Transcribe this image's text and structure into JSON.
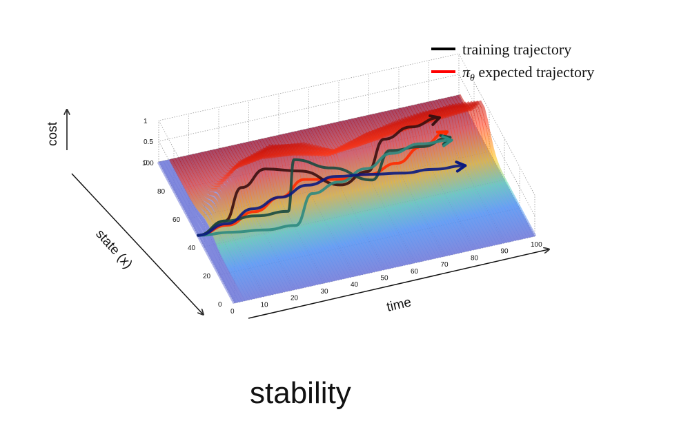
{
  "chart_data": {
    "type": "surface",
    "title": "",
    "caption": "stability",
    "axes": {
      "x": {
        "label": "time",
        "ticks": [
          "0",
          "10",
          "20",
          "30",
          "40",
          "50",
          "60",
          "70",
          "80",
          "90",
          "100"
        ],
        "range": [
          0,
          100
        ]
      },
      "y": {
        "label": "state (x)",
        "ticks": [
          "0",
          "20",
          "40",
          "60",
          "80",
          "100"
        ],
        "range": [
          0,
          100
        ]
      },
      "z": {
        "label": "cost",
        "ticks": [
          "0",
          "0.5",
          "1"
        ],
        "range": [
          0,
          1
        ]
      }
    },
    "grid": true,
    "colormap": "jet",
    "legend": {
      "placement": "top-right",
      "entries": [
        {
          "prefix": "",
          "symbol": "",
          "label": "training trajectory",
          "color": "#000000"
        },
        {
          "prefix": "",
          "symbol": "π",
          "sub": "θ",
          "label": " expected trajectory",
          "color": "#ff0000"
        }
      ]
    },
    "series": [
      {
        "type": "cost-ridge",
        "time": [
          0,
          10,
          20,
          30,
          40,
          50,
          60,
          70,
          80,
          90,
          100
        ],
        "ridge_center_state": [
          45,
          58,
          66,
          68,
          66,
          62,
          62,
          64,
          66,
          68,
          70
        ],
        "ridge_peak_cost": [
          0.0,
          0.5,
          0.8,
          0.95,
          0.9,
          0.7,
          0.95,
          1.0,
          1.0,
          0.95,
          0.8
        ]
      },
      {
        "type": "trajectory",
        "color": "#ff2a00",
        "time": [
          0,
          10,
          20,
          30,
          40,
          50,
          60,
          70,
          80,
          90
        ],
        "state": [
          48,
          49,
          53,
          58,
          66,
          62,
          60,
          63,
          70,
          76
        ]
      },
      {
        "type": "trajectory",
        "color": "#3a1010",
        "time": [
          0,
          10,
          20,
          30,
          40,
          50,
          60,
          70,
          80,
          90
        ],
        "state": [
          48,
          52,
          70,
          78,
          72,
          58,
          62,
          80,
          84,
          86
        ]
      },
      {
        "type": "trajectory",
        "color": "#1a4a40",
        "time": [
          0,
          10,
          20,
          30,
          40,
          50,
          60,
          70,
          80,
          90
        ],
        "state": [
          48,
          52,
          50,
          48,
          80,
          70,
          56,
          72,
          70,
          72
        ]
      },
      {
        "type": "trajectory",
        "color": "#2d8a80",
        "time": [
          0,
          10,
          20,
          30,
          40,
          50,
          60,
          70,
          80,
          90
        ],
        "state": [
          48,
          44,
          40,
          38,
          56,
          60,
          64,
          70,
          72,
          70
        ]
      },
      {
        "type": "trajectory",
        "color": "#0a1a80",
        "time": [
          0,
          10,
          20,
          30,
          40,
          50,
          60,
          70,
          80,
          90
        ],
        "state": [
          48,
          50,
          55,
          58,
          62,
          64,
          60,
          56,
          54,
          52
        ]
      }
    ]
  }
}
